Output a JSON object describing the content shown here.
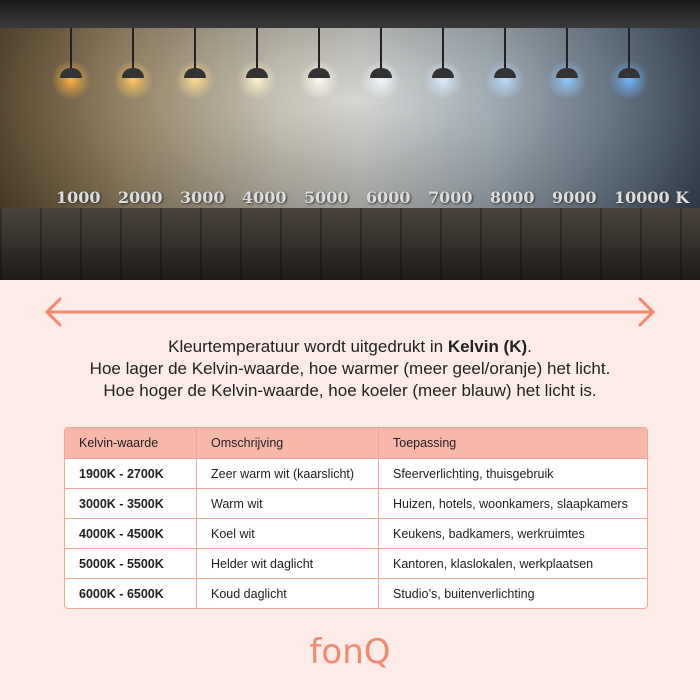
{
  "photo": {
    "kelvin_labels": [
      "1000",
      "2000",
      "3000",
      "4000",
      "5000",
      "6000",
      "7000",
      "8000",
      "9000",
      "10000 K"
    ],
    "lamp_colors": [
      "#ffb040",
      "#ffc860",
      "#ffdc90",
      "#fff0c8",
      "#fffaf0",
      "#f0f8ff",
      "#d8ecff",
      "#b8dcff",
      "#90c8ff",
      "#70b4ff"
    ]
  },
  "arrow_color": "#f28a70",
  "intro": {
    "line1_prefix": "Kleurtemperatuur wordt uitgedrukt in ",
    "line1_bold": "Kelvin (K)",
    "line1_suffix": ".",
    "line2": "Hoe lager de Kelvin-waarde, hoe warmer (meer geel/oranje) het licht.",
    "line3": "Hoe hoger de Kelvin-waarde, hoe koeler (meer blauw) het licht is."
  },
  "table": {
    "headers": [
      "Kelvin-waarde",
      "Omschrijving",
      "Toepassing"
    ],
    "rows": [
      [
        "1900K - 2700K",
        "Zeer warm wit (kaarslicht)",
        "Sfeerverlichting, thuisgebruik"
      ],
      [
        "3000K - 3500K",
        "Warm wit",
        "Huizen, hotels, woonkamers, slaapkamers"
      ],
      [
        "4000K - 4500K",
        "Koel wit",
        "Keukens, badkamers, werkruimtes"
      ],
      [
        "5000K - 5500K",
        "Helder wit daglicht",
        "Kantoren, klaslokalen, werkplaatsen"
      ],
      [
        "6000K - 6500K",
        "Koud daglicht",
        "Studio’s, buitenverlichting"
      ]
    ]
  },
  "logo": "fonQ"
}
